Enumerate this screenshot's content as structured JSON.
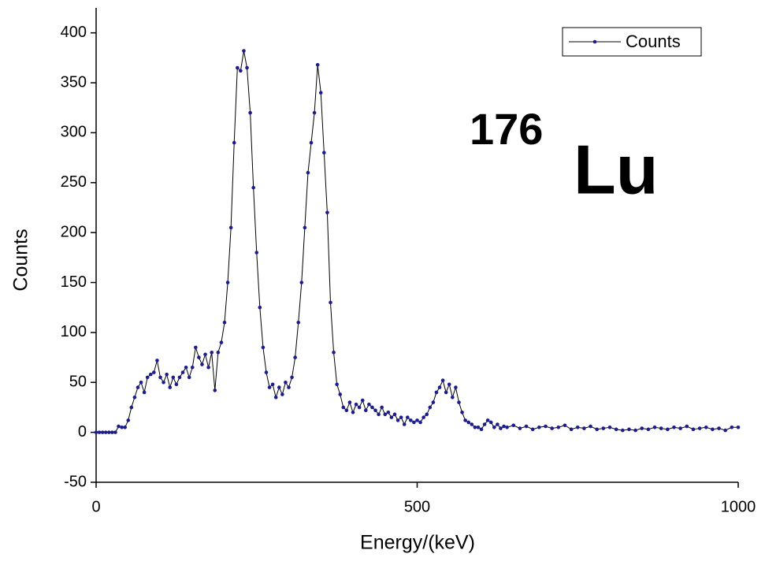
{
  "chart_data": {
    "type": "line",
    "x_label": "Energy/(keV)",
    "y_label": "Counts",
    "annotation_superscript": "176",
    "annotation": "Lu",
    "legend": "top-right",
    "xlim": [
      0,
      1000
    ],
    "xticks": [
      0,
      500,
      1000
    ],
    "ylim": [
      -50,
      425
    ],
    "yticks": [
      -50,
      0,
      50,
      100,
      150,
      200,
      250,
      300,
      350,
      400
    ],
    "x": [
      0,
      5,
      10,
      15,
      20,
      25,
      30,
      35,
      40,
      45,
      50,
      55,
      60,
      65,
      70,
      75,
      80,
      85,
      90,
      95,
      100,
      105,
      110,
      115,
      120,
      125,
      130,
      135,
      140,
      145,
      150,
      155,
      160,
      165,
      170,
      175,
      180,
      185,
      190,
      195,
      200,
      205,
      210,
      215,
      220,
      225,
      230,
      235,
      240,
      245,
      250,
      255,
      260,
      265,
      270,
      275,
      280,
      285,
      290,
      295,
      300,
      305,
      310,
      315,
      320,
      325,
      330,
      335,
      340,
      345,
      350,
      355,
      360,
      365,
      370,
      375,
      380,
      385,
      390,
      395,
      400,
      405,
      410,
      415,
      420,
      425,
      430,
      435,
      440,
      445,
      450,
      455,
      460,
      465,
      470,
      475,
      480,
      485,
      490,
      495,
      500,
      505,
      510,
      515,
      520,
      525,
      530,
      535,
      540,
      545,
      550,
      555,
      560,
      565,
      570,
      575,
      580,
      585,
      590,
      595,
      600,
      605,
      610,
      615,
      620,
      625,
      630,
      635,
      640,
      650,
      660,
      670,
      680,
      690,
      700,
      710,
      720,
      730,
      740,
      750,
      760,
      770,
      780,
      790,
      800,
      810,
      820,
      830,
      840,
      850,
      860,
      870,
      880,
      890,
      900,
      910,
      920,
      930,
      940,
      950,
      960,
      970,
      980,
      990,
      1000
    ],
    "series": [
      {
        "name": "Counts",
        "color": "#1c1c8f",
        "line_color": "#000000",
        "values": [
          0,
          0,
          0,
          0,
          0,
          0,
          0,
          6,
          5,
          5,
          12,
          25,
          35,
          45,
          50,
          40,
          55,
          58,
          60,
          72,
          55,
          50,
          58,
          45,
          55,
          48,
          55,
          60,
          65,
          55,
          65,
          85,
          75,
          68,
          78,
          65,
          80,
          42,
          80,
          90,
          110,
          150,
          205,
          290,
          365,
          362,
          382,
          365,
          320,
          245,
          180,
          125,
          85,
          60,
          45,
          48,
          35,
          45,
          38,
          50,
          45,
          55,
          75,
          110,
          150,
          205,
          260,
          290,
          320,
          368,
          340,
          280,
          220,
          130,
          80,
          48,
          38,
          25,
          22,
          30,
          20,
          28,
          25,
          32,
          22,
          28,
          25,
          22,
          18,
          25,
          18,
          20,
          15,
          18,
          12,
          15,
          8,
          15,
          12,
          10,
          12,
          10,
          15,
          18,
          25,
          30,
          40,
          45,
          52,
          40,
          48,
          35,
          45,
          30,
          20,
          12,
          10,
          8,
          5,
          5,
          3,
          8,
          12,
          10,
          5,
          8,
          4,
          6,
          5,
          7,
          4,
          6,
          3,
          5,
          6,
          4,
          5,
          7,
          3,
          5,
          4,
          6,
          3,
          4,
          5,
          3,
          2,
          3,
          2,
          4,
          3,
          5,
          4,
          3,
          5,
          4,
          6,
          3,
          4,
          5,
          3,
          4,
          2,
          5,
          5
        ]
      }
    ]
  }
}
